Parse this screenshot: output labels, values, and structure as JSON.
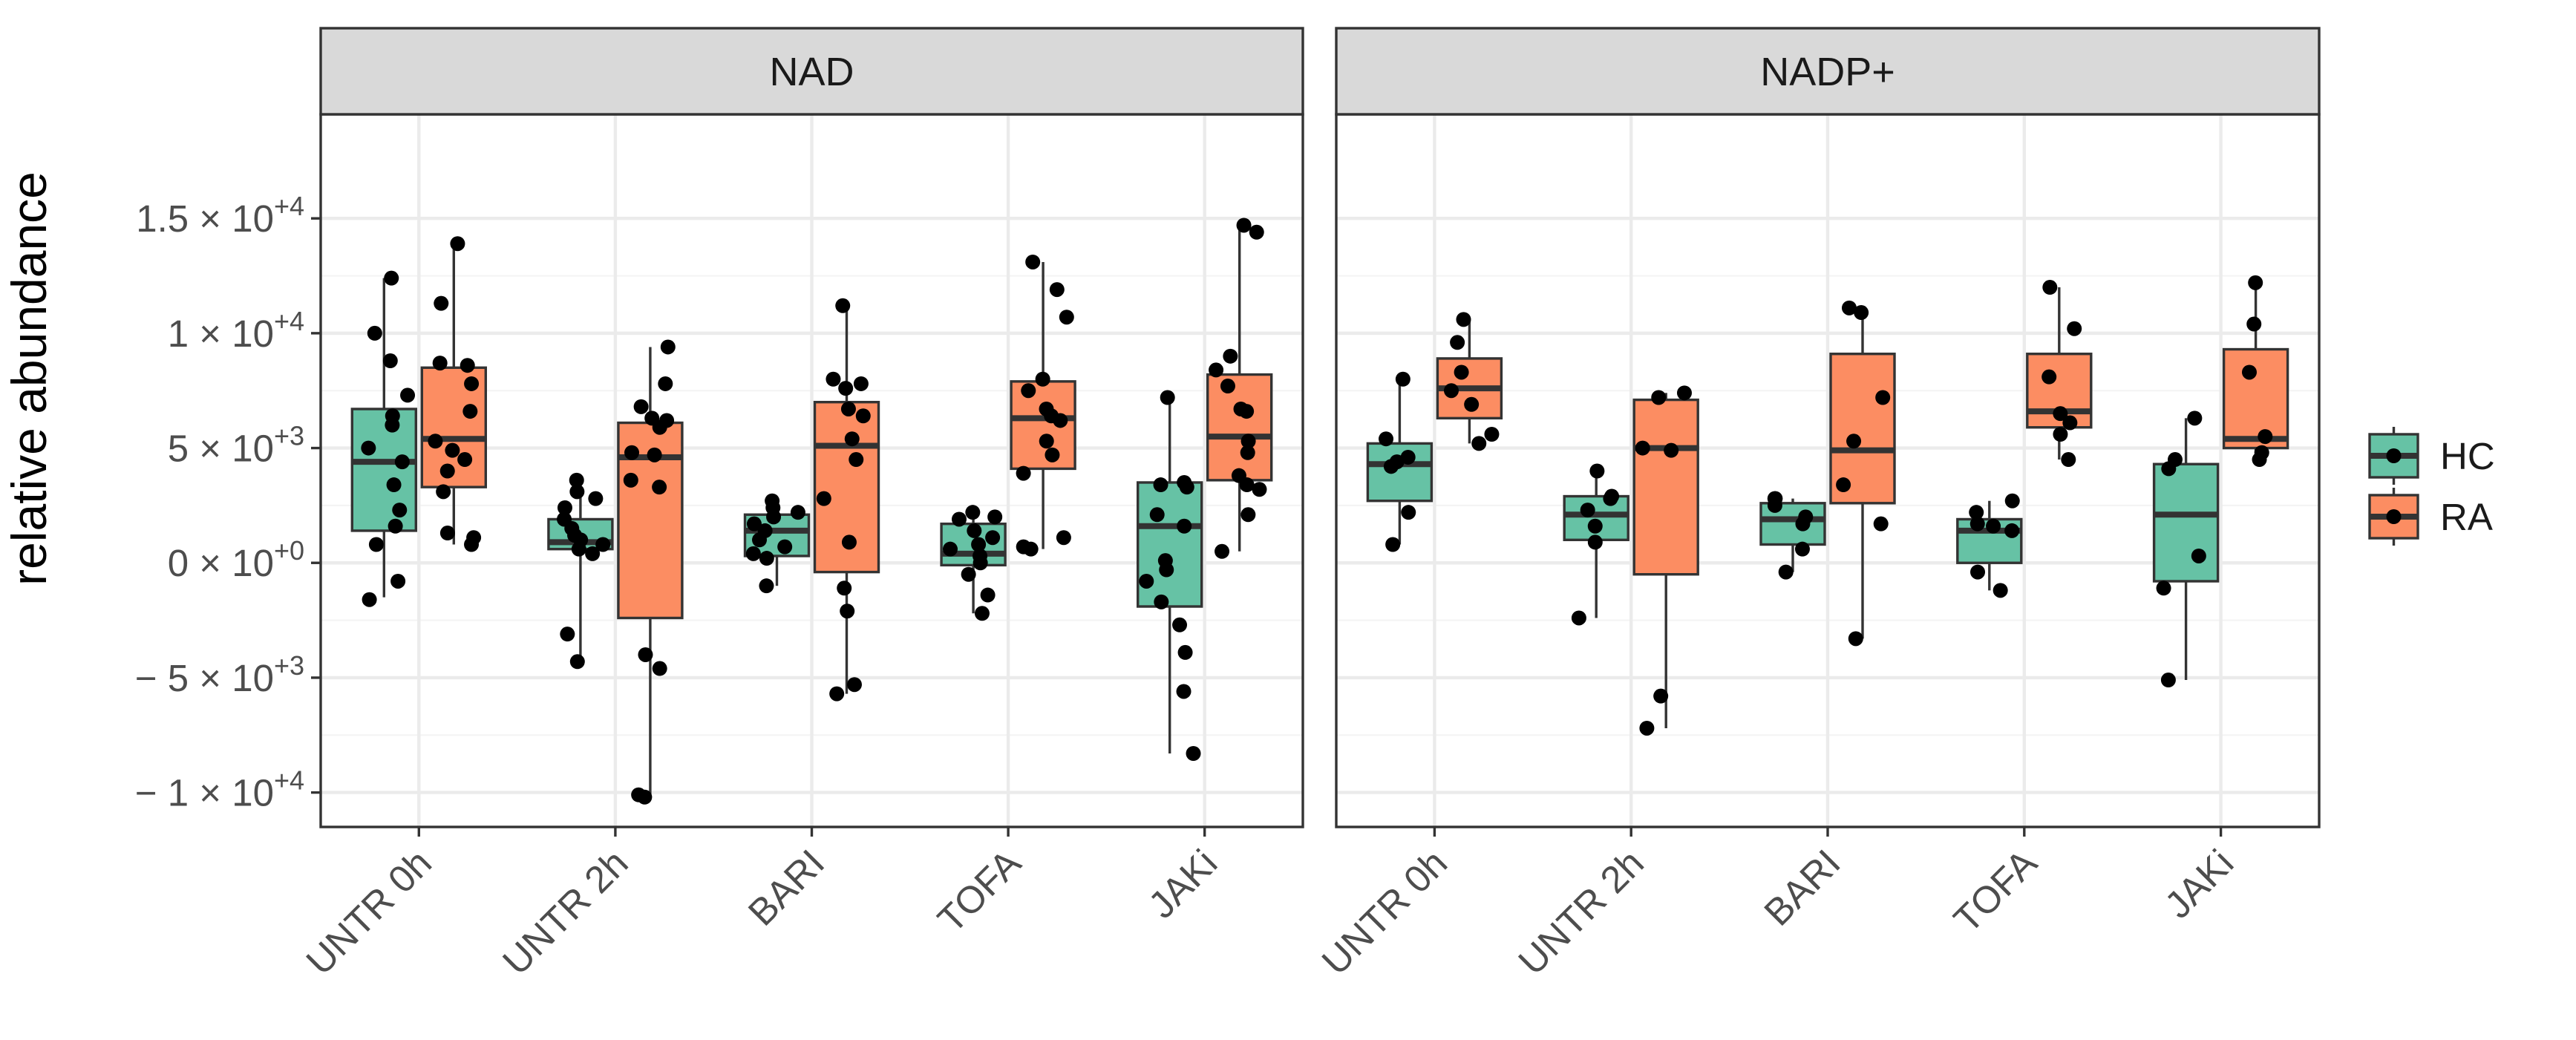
{
  "chart_data": {
    "type": "boxplot",
    "facets": [
      "NAD",
      "NADP+"
    ],
    "categories": [
      "UNTR 0h",
      "UNTR 2h",
      "BARI",
      "TOFA",
      "JAKi"
    ],
    "ylabel": "relative abundance",
    "ylim": [
      -11500,
      19500
    ],
    "yticks": [
      {
        "value": 15000,
        "base": "1.5 × 10",
        "exp": "+4"
      },
      {
        "value": 10000,
        "base": "1 × 10",
        "exp": "+4"
      },
      {
        "value": 5000,
        "base": "5 × 10",
        "exp": "+3"
      },
      {
        "value": 0,
        "base": "0 × 10",
        "exp": "+0"
      },
      {
        "value": -5000,
        "base": "− 5 × 10",
        "exp": "+3"
      },
      {
        "value": -10000,
        "base": "− 1 × 10",
        "exp": "+4"
      }
    ],
    "legend": {
      "title": "",
      "position": "right",
      "entries": [
        {
          "key": "HC",
          "label": "HC",
          "color": "#66c2a5"
        },
        {
          "key": "RA",
          "label": "RA",
          "color": "#fc8d62"
        }
      ]
    },
    "boxes": [
      {
        "facet": "NAD",
        "category": "UNTR 0h",
        "group": "HC",
        "lower": -1500,
        "q1": 1400,
        "median": 4400,
        "q3": 6700,
        "upper": 12400,
        "points": [
          12400,
          10000,
          8800,
          7300,
          6400,
          6000,
          5000,
          4400,
          3400,
          2300,
          1600,
          800,
          -800,
          -1600
        ]
      },
      {
        "facet": "NAD",
        "category": "UNTR 0h",
        "group": "RA",
        "lower": 800,
        "q1": 3300,
        "median": 5400,
        "q3": 8500,
        "upper": 13900,
        "points": [
          13900,
          11300,
          8700,
          8600,
          7800,
          6600,
          5300,
          4900,
          4500,
          4000,
          3100,
          1300,
          1100,
          800
        ]
      },
      {
        "facet": "NAD",
        "category": "UNTR 2h",
        "group": "HC",
        "lower": -4300,
        "q1": 600,
        "median": 900,
        "q3": 1900,
        "upper": 3600,
        "points": [
          3600,
          3100,
          2800,
          2400,
          1900,
          1500,
          1200,
          1000,
          800,
          600,
          400,
          -3100,
          -4300
        ]
      },
      {
        "facet": "NAD",
        "category": "UNTR 2h",
        "group": "RA",
        "lower": -10200,
        "q1": -2400,
        "median": 4600,
        "q3": 6100,
        "upper": 9400,
        "points": [
          9400,
          7800,
          6800,
          6300,
          6200,
          5900,
          4800,
          4700,
          3600,
          3300,
          -4000,
          -4600,
          -10100,
          -10200
        ]
      },
      {
        "facet": "NAD",
        "category": "BARI",
        "group": "HC",
        "lower": -1000,
        "q1": 300,
        "median": 1400,
        "q3": 2100,
        "upper": 2700,
        "points": [
          2700,
          2400,
          2200,
          2000,
          1700,
          1400,
          1000,
          700,
          400,
          200,
          -1000
        ]
      },
      {
        "facet": "NAD",
        "category": "BARI",
        "group": "RA",
        "lower": -5700,
        "q1": -400,
        "median": 5100,
        "q3": 7000,
        "upper": 11200,
        "points": [
          11200,
          8000,
          7800,
          7600,
          6700,
          6400,
          5400,
          4500,
          2800,
          900,
          -1100,
          -2100,
          -5300,
          -5700
        ]
      },
      {
        "facet": "NAD",
        "category": "TOFA",
        "group": "HC",
        "lower": -2200,
        "q1": -100,
        "median": 400,
        "q3": 1700,
        "upper": 2200,
        "points": [
          2200,
          2000,
          1900,
          1400,
          1100,
          800,
          600,
          300,
          0,
          -500,
          -1400,
          -2200
        ]
      },
      {
        "facet": "NAD",
        "category": "TOFA",
        "group": "RA",
        "lower": 600,
        "q1": 4100,
        "median": 6300,
        "q3": 7900,
        "upper": 13100,
        "points": [
          13100,
          11900,
          10700,
          8000,
          7500,
          6700,
          6400,
          6200,
          5300,
          4700,
          3900,
          1100,
          700,
          600
        ]
      },
      {
        "facet": "NAD",
        "category": "JAKi",
        "group": "HC",
        "lower": -8300,
        "q1": -1900,
        "median": 1600,
        "q3": 3500,
        "upper": 7200,
        "points": [
          7200,
          3500,
          3400,
          3300,
          2100,
          1600,
          100,
          -300,
          -800,
          -1700,
          -2700,
          -3900,
          -5600,
          -8300
        ]
      },
      {
        "facet": "NAD",
        "category": "JAKi",
        "group": "RA",
        "lower": 500,
        "q1": 3600,
        "median": 5500,
        "q3": 8200,
        "upper": 14700,
        "points": [
          14700,
          14400,
          9000,
          8400,
          7700,
          6700,
          6600,
          5300,
          4800,
          3800,
          3400,
          3200,
          2100,
          500
        ]
      },
      {
        "facet": "NADP+",
        "category": "UNTR 0h",
        "group": "HC",
        "lower": 800,
        "q1": 2700,
        "median": 4300,
        "q3": 5200,
        "upper": 8000,
        "points": [
          8000,
          5400,
          4600,
          4400,
          4200,
          2200,
          800
        ]
      },
      {
        "facet": "NADP+",
        "category": "UNTR 0h",
        "group": "RA",
        "lower": 5200,
        "q1": 6300,
        "median": 7600,
        "q3": 8900,
        "upper": 10600,
        "points": [
          10600,
          9600,
          8300,
          7500,
          6900,
          5600,
          5200
        ]
      },
      {
        "facet": "NADP+",
        "category": "UNTR 2h",
        "group": "HC",
        "lower": -2400,
        "q1": 1000,
        "median": 2100,
        "q3": 2900,
        "upper": 4000,
        "points": [
          4000,
          2900,
          2800,
          2300,
          1600,
          900,
          -2400
        ]
      },
      {
        "facet": "NADP+",
        "category": "UNTR 2h",
        "group": "RA",
        "lower": -7200,
        "q1": -500,
        "median": 5000,
        "q3": 7100,
        "upper": 7400,
        "points": [
          7400,
          7200,
          5000,
          4900,
          -5800,
          -7200
        ]
      },
      {
        "facet": "NADP+",
        "category": "BARI",
        "group": "HC",
        "lower": -400,
        "q1": 800,
        "median": 1900,
        "q3": 2600,
        "upper": 2800,
        "points": [
          2800,
          2800,
          2500,
          2000,
          1700,
          600,
          -400
        ]
      },
      {
        "facet": "NADP+",
        "category": "BARI",
        "group": "RA",
        "lower": -3300,
        "q1": 2600,
        "median": 4900,
        "q3": 9100,
        "upper": 11100,
        "points": [
          11100,
          10900,
          7200,
          5300,
          3400,
          1700,
          -3300
        ]
      },
      {
        "facet": "NADP+",
        "category": "TOFA",
        "group": "HC",
        "lower": -1200,
        "q1": 0,
        "median": 1400,
        "q3": 1900,
        "upper": 2700,
        "points": [
          2700,
          2200,
          1700,
          1600,
          1400,
          -400,
          -1200
        ]
      },
      {
        "facet": "NADP+",
        "category": "TOFA",
        "group": "RA",
        "lower": 4500,
        "q1": 5900,
        "median": 6600,
        "q3": 9100,
        "upper": 12000,
        "points": [
          12000,
          10200,
          8100,
          6500,
          6100,
          5600,
          4500
        ]
      },
      {
        "facet": "NADP+",
        "category": "JAKi",
        "group": "HC",
        "lower": -5100,
        "q1": -800,
        "median": 2100,
        "q3": 4300,
        "upper": 6300,
        "points": [
          6300,
          4500,
          4100,
          300,
          -1100,
          -5100
        ]
      },
      {
        "facet": "NADP+",
        "category": "JAKi",
        "group": "RA",
        "lower": 4500,
        "q1": 5000,
        "median": 5400,
        "q3": 9300,
        "upper": 12200,
        "points": [
          12200,
          10400,
          8300,
          5500,
          4800,
          4500
        ]
      }
    ]
  }
}
